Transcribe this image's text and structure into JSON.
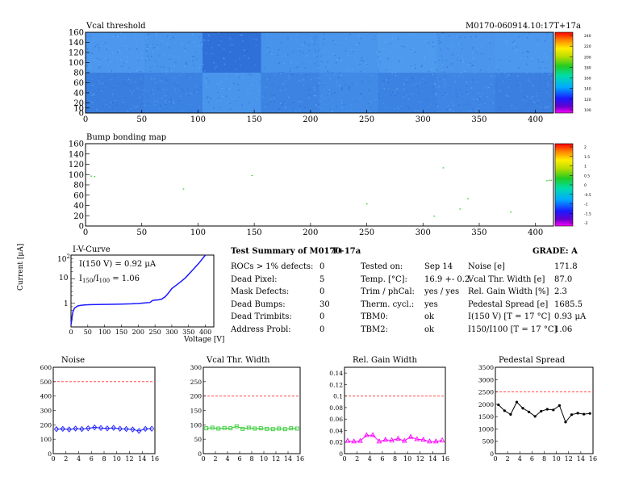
{
  "header": {
    "left_title": "Vcal threshold",
    "right_id": "M0170-060914.10:17T+17a"
  },
  "map1": {
    "xlim": [
      0,
      416
    ],
    "ylim": [
      0,
      160
    ],
    "xticks": [
      0,
      50,
      100,
      150,
      200,
      250,
      300,
      350,
      400
    ],
    "yticks": [
      0,
      10,
      20,
      40,
      60,
      80,
      100,
      120,
      140,
      160
    ],
    "palette_ticks": [
      "240",
      "220",
      "200",
      "180",
      "160",
      "140",
      "120",
      "100"
    ]
  },
  "map2": {
    "title": "Bump bonding map",
    "xlim": [
      0,
      416
    ],
    "ylim": [
      0,
      160
    ],
    "xticks": [
      0,
      50,
      100,
      150,
      200,
      250,
      300,
      350,
      400
    ],
    "yticks": [
      0,
      20,
      40,
      60,
      80,
      100,
      120,
      140,
      160
    ],
    "palette_ticks": [
      "2",
      "1.5",
      "1",
      "0.5",
      "0",
      "-0.5",
      "-1",
      "-1.5",
      "-2"
    ],
    "points": [
      [
        5,
        97
      ],
      [
        8,
        96
      ],
      [
        87,
        72
      ],
      [
        148,
        98
      ],
      [
        250,
        43
      ],
      [
        310,
        19
      ],
      [
        318,
        113
      ],
      [
        333,
        33
      ],
      [
        340,
        53
      ],
      [
        378,
        27
      ],
      [
        410,
        88
      ],
      [
        412,
        89
      ],
      [
        414,
        89
      ]
    ]
  },
  "iv": {
    "title": "I-V-Curve",
    "ylabel": "Current [μA]",
    "xlabel": "Voltage [V]",
    "xticks": [
      "0",
      "50",
      "100",
      "150",
      "200",
      "250",
      "300",
      "350",
      "400"
    ],
    "ytop": "10",
    "ytop_exp": "2",
    "ymid": "10",
    "ybot": "1",
    "annot1": "I(150 V) = 0.92 μA",
    "annot2_a": "I",
    "annot2_sub1": "150",
    "annot2_b": "/I",
    "annot2_sub2": "100",
    "annot2_c": " = 1.06",
    "x": [
      0,
      5,
      10,
      20,
      30,
      40,
      60,
      80,
      100,
      120,
      150,
      180,
      200,
      220,
      235,
      240,
      245,
      260,
      270,
      280,
      290,
      300,
      320,
      340,
      360,
      380,
      400
    ],
    "y": [
      0.12,
      0.4,
      0.6,
      0.75,
      0.8,
      0.83,
      0.85,
      0.86,
      0.87,
      0.88,
      0.9,
      0.92,
      0.95,
      1.0,
      1.05,
      1.2,
      1.3,
      1.35,
      1.45,
      1.8,
      2.6,
      4.0,
      6.5,
      11,
      22,
      45,
      100
    ]
  },
  "summary": {
    "title": "Test Summary of M0170",
    "title2": "T+17a",
    "grade": "GRADE:  A",
    "col1": [
      {
        "label": "ROCs > 1% defects:",
        "value": "0"
      },
      {
        "label": "Dead Pixel:",
        "value": "5"
      },
      {
        "label": "Mask Defects:",
        "value": "0"
      },
      {
        "label": "Dead Bumps:",
        "value": "30"
      },
      {
        "label": "Dead Trimbits:",
        "value": "0"
      },
      {
        "label": "Address Probl:",
        "value": "0"
      }
    ],
    "col2": [
      {
        "label": "Tested on:",
        "value": "Sep 14"
      },
      {
        "label": "Temp. [°C]:",
        "value": "16.9 +- 0.2"
      },
      {
        "label": "Trim / phCal:",
        "value": "yes / yes"
      },
      {
        "label": "Therm. cycl.:",
        "value": "yes"
      },
      {
        "label": "TBM0:",
        "value": "ok"
      },
      {
        "label": "TBM2:",
        "value": "ok"
      }
    ],
    "col3": [
      {
        "label": "Noise [e]",
        "value": "171.8"
      },
      {
        "label": "Vcal Thr. Width [e]",
        "value": "87.0"
      },
      {
        "label": "Rel. Gain Width [%]",
        "value": "2.3"
      },
      {
        "label": "Pedestal Spread [e]",
        "value": "1685.5"
      },
      {
        "label": "I(150 V) [T = 17 °C]",
        "value": "0.93 μA"
      },
      {
        "label": "I150/I100   [T = 17 °C]",
        "value": "1.06"
      }
    ]
  },
  "chart_data": [
    {
      "type": "line",
      "title": "Noise",
      "x": [
        0,
        1,
        2,
        3,
        4,
        5,
        6,
        7,
        8,
        9,
        10,
        11,
        12,
        13,
        14,
        15
      ],
      "y": [
        170,
        172,
        168,
        174,
        171,
        176,
        182,
        178,
        175,
        179,
        173,
        171,
        168,
        158,
        172,
        173
      ],
      "xlim": [
        0,
        16
      ],
      "ylim": [
        0,
        600
      ],
      "yticks": [
        0,
        100,
        200,
        300,
        400,
        500,
        600
      ],
      "threshold": 500,
      "color": "#1a1aff",
      "marker": "diamond"
    },
    {
      "type": "line",
      "title": "Vcal Thr. Width",
      "x": [
        0,
        1,
        2,
        3,
        4,
        5,
        6,
        7,
        8,
        9,
        10,
        11,
        12,
        13,
        14,
        15
      ],
      "y": [
        88,
        90,
        87,
        89,
        88,
        95,
        86,
        90,
        87,
        88,
        86,
        85,
        87,
        85,
        88,
        87
      ],
      "xlim": [
        0,
        16
      ],
      "ylim": [
        0,
        300
      ],
      "yticks": [
        0,
        50,
        100,
        150,
        200,
        250,
        300
      ],
      "threshold": 200,
      "color": "#33cc33",
      "marker": "square"
    },
    {
      "type": "line",
      "title": "Rel. Gain Width",
      "x": [
        0,
        1,
        2,
        3,
        4,
        5,
        6,
        7,
        8,
        9,
        10,
        11,
        12,
        13,
        14,
        15
      ],
      "y": [
        0.022,
        0.021,
        0.022,
        0.032,
        0.032,
        0.021,
        0.024,
        0.023,
        0.026,
        0.022,
        0.029,
        0.025,
        0.024,
        0.021,
        0.021,
        0.023
      ],
      "xlim": [
        0,
        16
      ],
      "ylim": [
        0,
        0.15
      ],
      "yticks": [
        0,
        0.02,
        0.04,
        0.06,
        0.08,
        0.1,
        0.12,
        0.14
      ],
      "threshold": 0.1,
      "color": "#ff00ff",
      "marker": "triangle"
    },
    {
      "type": "line",
      "title": "Pedestal Spread",
      "x": [
        0,
        1,
        2,
        3,
        4,
        5,
        6,
        7,
        8,
        9,
        10,
        11,
        12,
        13,
        14,
        15
      ],
      "y": [
        1980,
        1740,
        1590,
        2090,
        1840,
        1690,
        1510,
        1720,
        1800,
        1770,
        1950,
        1280,
        1580,
        1640,
        1600,
        1630
      ],
      "xlim": [
        0,
        16
      ],
      "ylim": [
        0,
        3500
      ],
      "yticks": [
        0,
        500,
        1000,
        1500,
        2000,
        2500,
        3000,
        3500
      ],
      "threshold": 2500,
      "color": "#000000",
      "marker": "dot"
    }
  ]
}
